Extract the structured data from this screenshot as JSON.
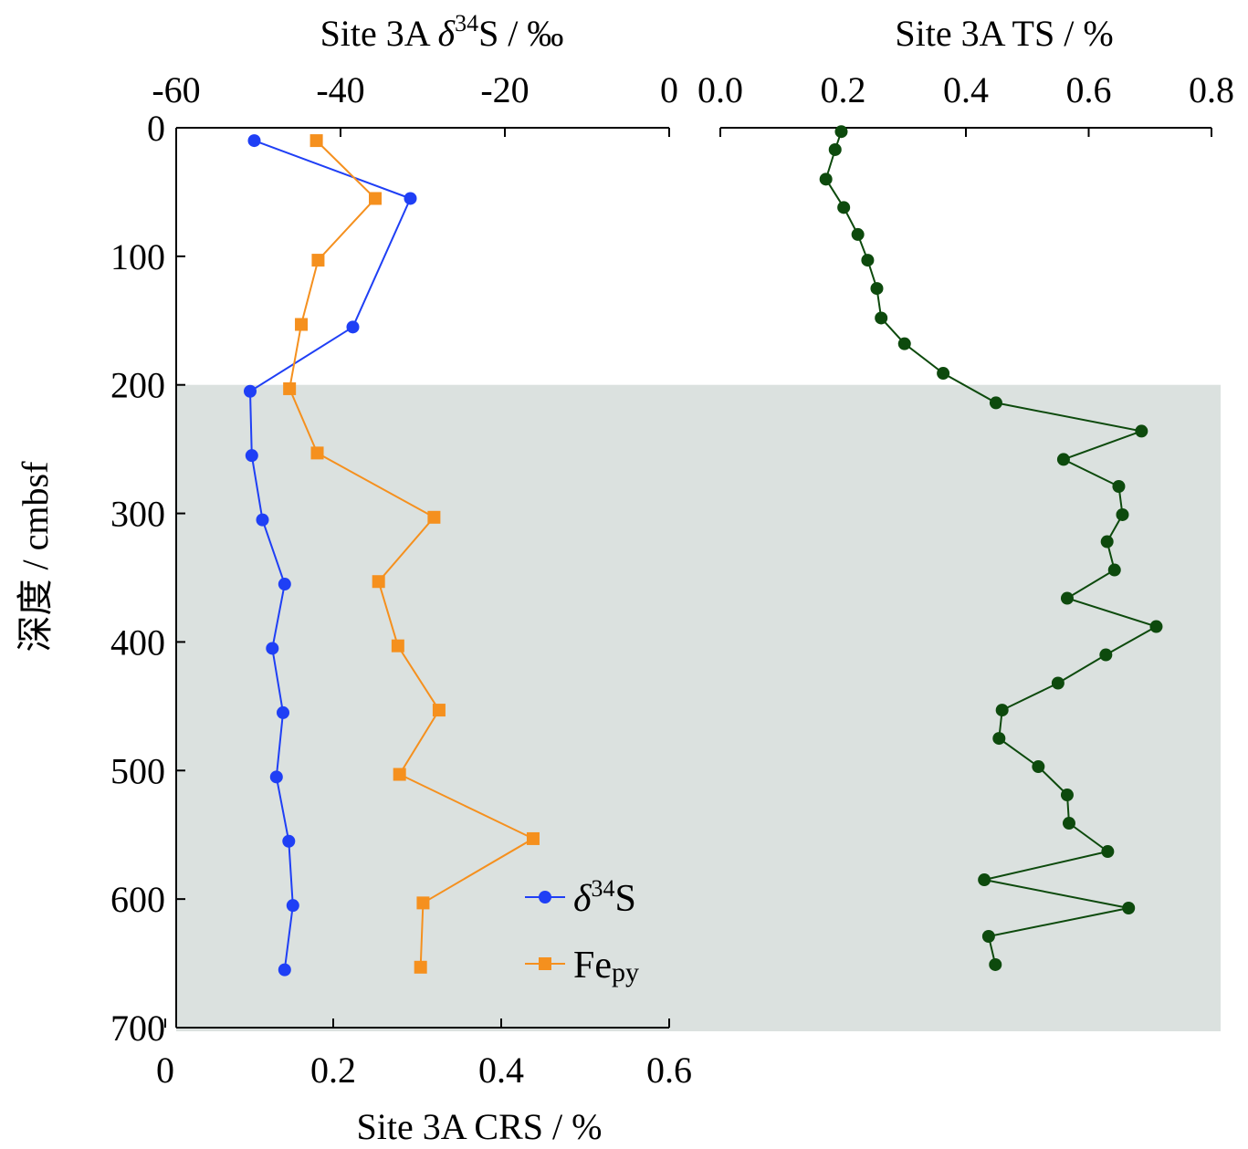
{
  "chart_data": [
    {
      "type": "line",
      "title": "",
      "ylabel": "深度 / cmbsf",
      "ylim": [
        0,
        700
      ],
      "y_ticks": [
        "0",
        "100",
        "200",
        "300",
        "400",
        "500",
        "600",
        "700"
      ],
      "shaded_region_y": [
        200,
        700
      ],
      "top_axis": {
        "label_pre": "Site  3A ",
        "label_delta": "δ",
        "label_sup": "34",
        "label_post": "S / ‰",
        "xlim": [
          -60,
          0
        ],
        "ticks": [
          "-60",
          "-40",
          "-20",
          "0"
        ]
      },
      "bottom_axis": {
        "label": "Site 3A CRS / %",
        "xlim": [
          0,
          0.6
        ],
        "ticks": [
          "0",
          "0.2",
          "0.4",
          "0.6"
        ]
      },
      "legend": {
        "position": "lower-right",
        "d34s_delta": "δ",
        "d34s_sup": "34",
        "d34s_post": "S",
        "fepy_main": "Fe",
        "fepy_sub": "py"
      },
      "series": [
        {
          "key": "d34s",
          "axis": "top",
          "color": "#1f3ff5",
          "depth": [
            10,
            55,
            155,
            205,
            255,
            305,
            355,
            405,
            455,
            505,
            555,
            605,
            655
          ],
          "values": [
            -50.5,
            -31.5,
            -38.5,
            -51,
            -50.8,
            -49.5,
            -46.8,
            -48.3,
            -47,
            -47.8,
            -46.3,
            -45.8,
            -46.8
          ]
        },
        {
          "key": "fepy",
          "axis": "bottom",
          "color": "#f5901e",
          "depth": [
            10,
            55,
            103,
            153,
            203,
            253,
            303,
            353,
            403,
            453,
            503,
            553,
            603,
            653
          ],
          "values": [
            0.18,
            0.25,
            0.182,
            0.162,
            0.148,
            0.181,
            0.32,
            0.254,
            0.277,
            0.326,
            0.279,
            0.438,
            0.307,
            0.304
          ]
        }
      ]
    },
    {
      "type": "line",
      "title": "",
      "top_axis": {
        "label": "Site  3A TS / %",
        "xlim": [
          0,
          0.8
        ],
        "ticks": [
          "0.0",
          "0.2",
          "0.4",
          "0.6",
          "0.8"
        ]
      },
      "ylim": [
        0,
        700
      ],
      "shaded_region_y": [
        200,
        700
      ],
      "series": [
        {
          "key": "ts",
          "color": "#0d4a0d",
          "depth": [
            3,
            17,
            40,
            62,
            83,
            103,
            125,
            148,
            168,
            191,
            214,
            236,
            258,
            279,
            301,
            322,
            344,
            366,
            388,
            410,
            432,
            453,
            475,
            497,
            519,
            541,
            563,
            585,
            607,
            629,
            651
          ],
          "values": [
            0.197,
            0.187,
            0.172,
            0.201,
            0.224,
            0.24,
            0.255,
            0.262,
            0.3,
            0.363,
            0.449,
            0.686,
            0.559,
            0.649,
            0.655,
            0.63,
            0.642,
            0.565,
            0.71,
            0.628,
            0.55,
            0.459,
            0.454,
            0.518,
            0.565,
            0.568,
            0.631,
            0.43,
            0.665,
            0.437,
            0.448
          ]
        }
      ]
    }
  ]
}
